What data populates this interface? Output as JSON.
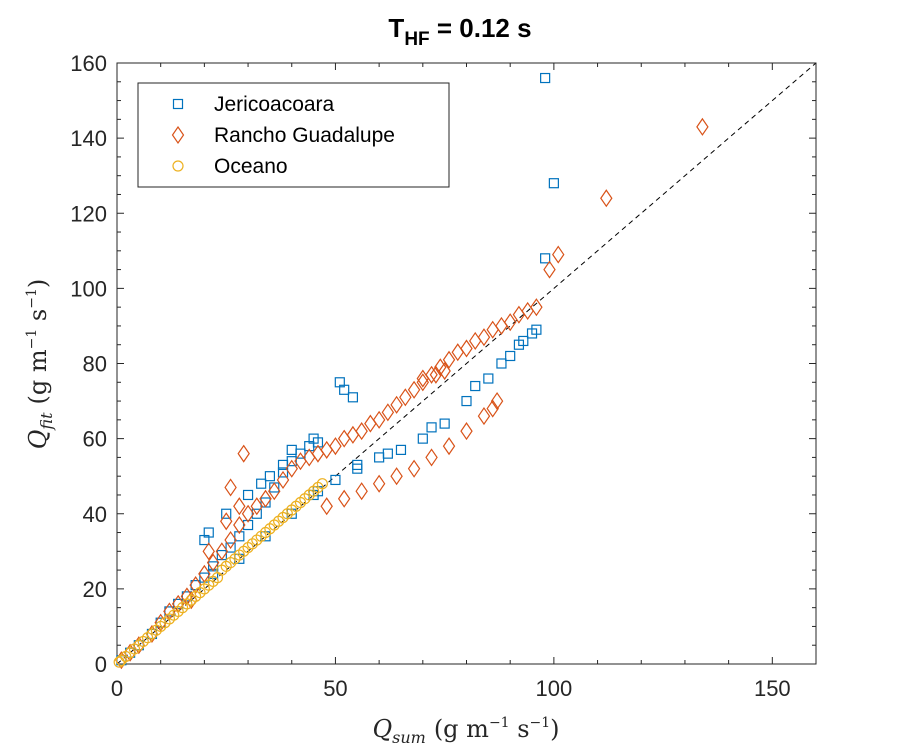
{
  "chart_data": {
    "type": "scatter",
    "title": {
      "main": "T",
      "sub": "HF",
      "rest": " = 0.12 s"
    },
    "xlabel": {
      "sym": "Q",
      "sub": "sum",
      "open": "(g m",
      "sup1": "−1",
      "mid": " s",
      "sup2": "−1",
      "close": ")"
    },
    "ylabel": {
      "sym": "Q",
      "sub": "fit",
      "open": "(g m",
      "sup1": "−1",
      "mid": " s",
      "sup2": "−1",
      "close": ")"
    },
    "xlim": [
      0,
      160
    ],
    "ylim": [
      0,
      160
    ],
    "xticks": [
      0,
      50,
      100,
      150
    ],
    "yticks": [
      0,
      20,
      40,
      60,
      80,
      100,
      120,
      140,
      160
    ],
    "grid": false,
    "legend_position": "top-left",
    "reference_line": {
      "style": "dashed",
      "color": "#000000",
      "from": [
        0,
        0
      ],
      "to": [
        160,
        160
      ]
    },
    "series": [
      {
        "name": "Jericoacoara",
        "marker": "square",
        "color": "#0072BD",
        "points": [
          [
            1,
            1
          ],
          [
            3,
            3
          ],
          [
            5,
            5
          ],
          [
            8,
            8
          ],
          [
            10,
            11
          ],
          [
            12,
            14
          ],
          [
            14,
            16
          ],
          [
            16,
            18
          ],
          [
            18,
            21
          ],
          [
            20,
            23
          ],
          [
            22,
            26
          ],
          [
            24,
            29
          ],
          [
            26,
            31
          ],
          [
            28,
            34
          ],
          [
            30,
            37
          ],
          [
            32,
            40
          ],
          [
            34,
            43
          ],
          [
            36,
            47
          ],
          [
            38,
            51
          ],
          [
            40,
            54
          ],
          [
            42,
            56
          ],
          [
            44,
            58
          ],
          [
            46,
            59
          ],
          [
            20,
            33
          ],
          [
            21,
            35
          ],
          [
            25,
            40
          ],
          [
            30,
            45
          ],
          [
            33,
            48
          ],
          [
            35,
            50
          ],
          [
            38,
            53
          ],
          [
            40,
            57
          ],
          [
            45,
            60
          ],
          [
            22,
            24
          ],
          [
            28,
            28
          ],
          [
            34,
            34
          ],
          [
            40,
            40
          ],
          [
            46,
            46
          ],
          [
            51,
            75
          ],
          [
            52,
            73
          ],
          [
            54,
            71
          ],
          [
            50,
            49
          ],
          [
            55,
            53
          ],
          [
            60,
            55
          ],
          [
            65,
            57
          ],
          [
            70,
            60
          ],
          [
            75,
            64
          ],
          [
            80,
            70
          ],
          [
            85,
            76
          ],
          [
            90,
            82
          ],
          [
            93,
            86
          ],
          [
            96,
            89
          ],
          [
            98,
            108
          ],
          [
            100,
            128
          ],
          [
            98,
            156
          ],
          [
            45,
            45
          ],
          [
            55,
            52
          ],
          [
            62,
            56
          ],
          [
            72,
            63
          ],
          [
            82,
            74
          ],
          [
            88,
            80
          ],
          [
            92,
            85
          ],
          [
            95,
            88
          ]
        ]
      },
      {
        "name": "Rancho Guadalupe",
        "marker": "diamond",
        "color": "#D95319",
        "points": [
          [
            1,
            1
          ],
          [
            3,
            3
          ],
          [
            5,
            5
          ],
          [
            8,
            8
          ],
          [
            10,
            11
          ],
          [
            12,
            14
          ],
          [
            14,
            16
          ],
          [
            16,
            18
          ],
          [
            18,
            21
          ],
          [
            20,
            24
          ],
          [
            22,
            27
          ],
          [
            24,
            30
          ],
          [
            26,
            33
          ],
          [
            28,
            37
          ],
          [
            30,
            40
          ],
          [
            32,
            42
          ],
          [
            34,
            44
          ],
          [
            36,
            46
          ],
          [
            38,
            49
          ],
          [
            40,
            52
          ],
          [
            42,
            54
          ],
          [
            44,
            55
          ],
          [
            46,
            56
          ],
          [
            48,
            57
          ],
          [
            50,
            58
          ],
          [
            52,
            60
          ],
          [
            54,
            61
          ],
          [
            56,
            62
          ],
          [
            58,
            64
          ],
          [
            60,
            65
          ],
          [
            62,
            67
          ],
          [
            64,
            69
          ],
          [
            66,
            71
          ],
          [
            68,
            73
          ],
          [
            70,
            75
          ],
          [
            72,
            77
          ],
          [
            74,
            79
          ],
          [
            76,
            81
          ],
          [
            78,
            83
          ],
          [
            80,
            84
          ],
          [
            82,
            86
          ],
          [
            84,
            87
          ],
          [
            86,
            89
          ],
          [
            88,
            90
          ],
          [
            90,
            91
          ],
          [
            92,
            93
          ],
          [
            94,
            94
          ],
          [
            96,
            95
          ],
          [
            17,
            17
          ],
          [
            21,
            30
          ],
          [
            26,
            47
          ],
          [
            29,
            56
          ],
          [
            25,
            38
          ],
          [
            28,
            42
          ],
          [
            48,
            42
          ],
          [
            52,
            44
          ],
          [
            56,
            46
          ],
          [
            60,
            48
          ],
          [
            64,
            50
          ],
          [
            68,
            52
          ],
          [
            72,
            55
          ],
          [
            76,
            58
          ],
          [
            80,
            62
          ],
          [
            84,
            66
          ],
          [
            86,
            68
          ],
          [
            87,
            70
          ],
          [
            70,
            76
          ],
          [
            73,
            77
          ],
          [
            75,
            78
          ],
          [
            99,
            105
          ],
          [
            101,
            109
          ],
          [
            112,
            124
          ],
          [
            134,
            143
          ]
        ]
      },
      {
        "name": "Oceano",
        "marker": "circle",
        "color": "#EDB120",
        "points": [
          [
            0.5,
            0.5
          ],
          [
            1,
            1
          ],
          [
            2,
            2
          ],
          [
            3,
            3
          ],
          [
            4,
            4
          ],
          [
            5,
            5
          ],
          [
            6,
            6
          ],
          [
            7,
            7
          ],
          [
            8,
            8
          ],
          [
            9,
            9
          ],
          [
            10,
            10
          ],
          [
            11,
            11
          ],
          [
            12,
            12
          ],
          [
            13,
            13
          ],
          [
            14,
            14
          ],
          [
            15,
            15
          ],
          [
            16,
            16
          ],
          [
            17,
            17
          ],
          [
            18,
            18
          ],
          [
            19,
            19
          ],
          [
            20,
            20
          ],
          [
            21,
            21
          ],
          [
            22,
            22
          ],
          [
            23,
            23
          ],
          [
            24,
            25
          ],
          [
            25,
            26
          ],
          [
            26,
            27
          ],
          [
            27,
            28
          ],
          [
            28,
            29
          ],
          [
            29,
            30
          ],
          [
            30,
            31
          ],
          [
            31,
            32
          ],
          [
            32,
            33
          ],
          [
            33,
            34
          ],
          [
            34,
            35
          ],
          [
            35,
            36
          ],
          [
            36,
            37
          ],
          [
            37,
            38
          ],
          [
            38,
            39
          ],
          [
            39,
            40
          ],
          [
            40,
            41
          ],
          [
            41,
            42
          ],
          [
            42,
            43
          ],
          [
            43,
            44
          ],
          [
            44,
            45
          ],
          [
            45,
            46
          ],
          [
            46,
            47
          ],
          [
            47,
            48
          ]
        ]
      }
    ]
  }
}
